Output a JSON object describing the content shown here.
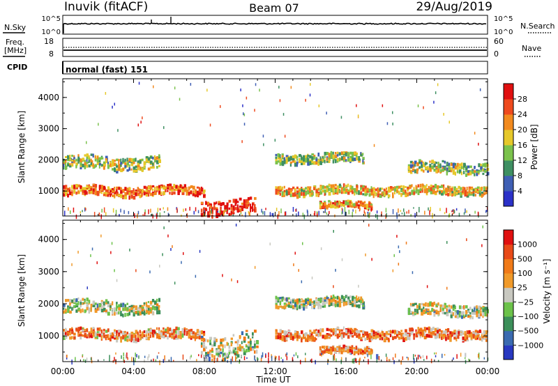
{
  "header": {
    "title": "Inuvik (fitACF)",
    "beam": "Beam 07",
    "date": "29/Aug/2019"
  },
  "noise_panel": {
    "left_label": "N.Sky",
    "right_label": "N.Search",
    "left_ticks": [
      "10^5",
      "10^0"
    ],
    "right_ticks": [
      "10^5",
      "10^0"
    ]
  },
  "freq_panel": {
    "label_line1": "Freq.",
    "label_line2": "[MHz]",
    "left_ticks": [
      "18",
      "8"
    ],
    "right_label": "Nave",
    "right_ticks": [
      "60",
      "0"
    ]
  },
  "cpid_panel": {
    "label": "CPID",
    "mode": "normal (fast) 151"
  },
  "chart_data": [
    {
      "type": "heatmap",
      "title": "",
      "xlabel": "Time UT",
      "ylabel": "Slant Range [km]",
      "xlim": [
        "00:00",
        "24:00"
      ],
      "ylim": [
        200,
        4600
      ],
      "x_ticks": [
        "00:00",
        "04:00",
        "08:00",
        "12:00",
        "16:00",
        "20:00",
        "00:00"
      ],
      "y_ticks": [
        "1000",
        "2000",
        "3000",
        "4000"
      ],
      "colorbar": {
        "label": "Power [dB]",
        "ticks": [
          "4",
          "8",
          "12",
          "16",
          "20",
          "24",
          "28"
        ],
        "colors": [
          "#2b31c8",
          "#3f5fb4",
          "#3e8f62",
          "#7bc24c",
          "#e6c82a",
          "#f28a1e",
          "#ee4a1e",
          "#e01010"
        ]
      },
      "bands": [
        {
          "t_start": 0.0,
          "t_end": 8.0,
          "range_center": 1000,
          "range_width": 300,
          "level": 0.78
        },
        {
          "t_start": 0.0,
          "t_end": 5.5,
          "range_center": 1900,
          "range_width": 400,
          "level": 0.45
        },
        {
          "t_start": 7.8,
          "t_end": 10.8,
          "range_center": 500,
          "range_width": 450,
          "level": 0.92
        },
        {
          "t_start": 12.0,
          "t_end": 24.0,
          "range_center": 1020,
          "range_width": 280,
          "level": 0.6
        },
        {
          "t_start": 12.0,
          "t_end": 17.0,
          "range_center": 2050,
          "range_width": 300,
          "level": 0.45
        },
        {
          "t_start": 19.5,
          "t_end": 24.0,
          "range_center": 1750,
          "range_width": 350,
          "level": 0.42
        },
        {
          "t_start": 14.5,
          "t_end": 17.5,
          "range_center": 550,
          "range_width": 200,
          "level": 0.7
        }
      ]
    },
    {
      "type": "heatmap",
      "title": "",
      "xlabel": "Time UT",
      "ylabel": "Slant Range [km]",
      "xlim": [
        "00:00",
        "24:00"
      ],
      "ylim": [
        200,
        4600
      ],
      "x_ticks": [
        "00:00",
        "04:00",
        "08:00",
        "12:00",
        "16:00",
        "20:00",
        "00:00"
      ],
      "y_ticks": [
        "1000",
        "2000",
        "3000",
        "4000"
      ],
      "colorbar": {
        "label": "Velocity [m s⁻¹]",
        "ticks": [
          "1000",
          "500",
          "100",
          "25",
          "−25",
          "−100",
          "−500",
          "−1000"
        ],
        "colors": [
          "#2838c0",
          "#3a6ab0",
          "#3c8f5a",
          "#6cc24a",
          "#c8c8c0",
          "#f09a2a",
          "#f07a18",
          "#e84a18",
          "#e01010"
        ]
      },
      "bands": [
        {
          "t_start": 0.0,
          "t_end": 8.0,
          "range_center": 1050,
          "range_width": 300,
          "level": 0.68
        },
        {
          "t_start": 0.0,
          "t_end": 5.5,
          "range_center": 1900,
          "range_width": 400,
          "level": 0.45
        },
        {
          "t_start": 7.8,
          "t_end": 11.0,
          "range_center": 700,
          "range_width": 700,
          "level": 0.45
        },
        {
          "t_start": 12.0,
          "t_end": 24.0,
          "range_center": 1050,
          "range_width": 300,
          "level": 0.7
        },
        {
          "t_start": 12.0,
          "t_end": 17.0,
          "range_center": 2050,
          "range_width": 300,
          "level": 0.45
        },
        {
          "t_start": 19.5,
          "t_end": 24.0,
          "range_center": 1800,
          "range_width": 350,
          "level": 0.45
        },
        {
          "t_start": 14.5,
          "t_end": 17.5,
          "range_center": 550,
          "range_width": 200,
          "level": 0.7
        }
      ]
    }
  ]
}
